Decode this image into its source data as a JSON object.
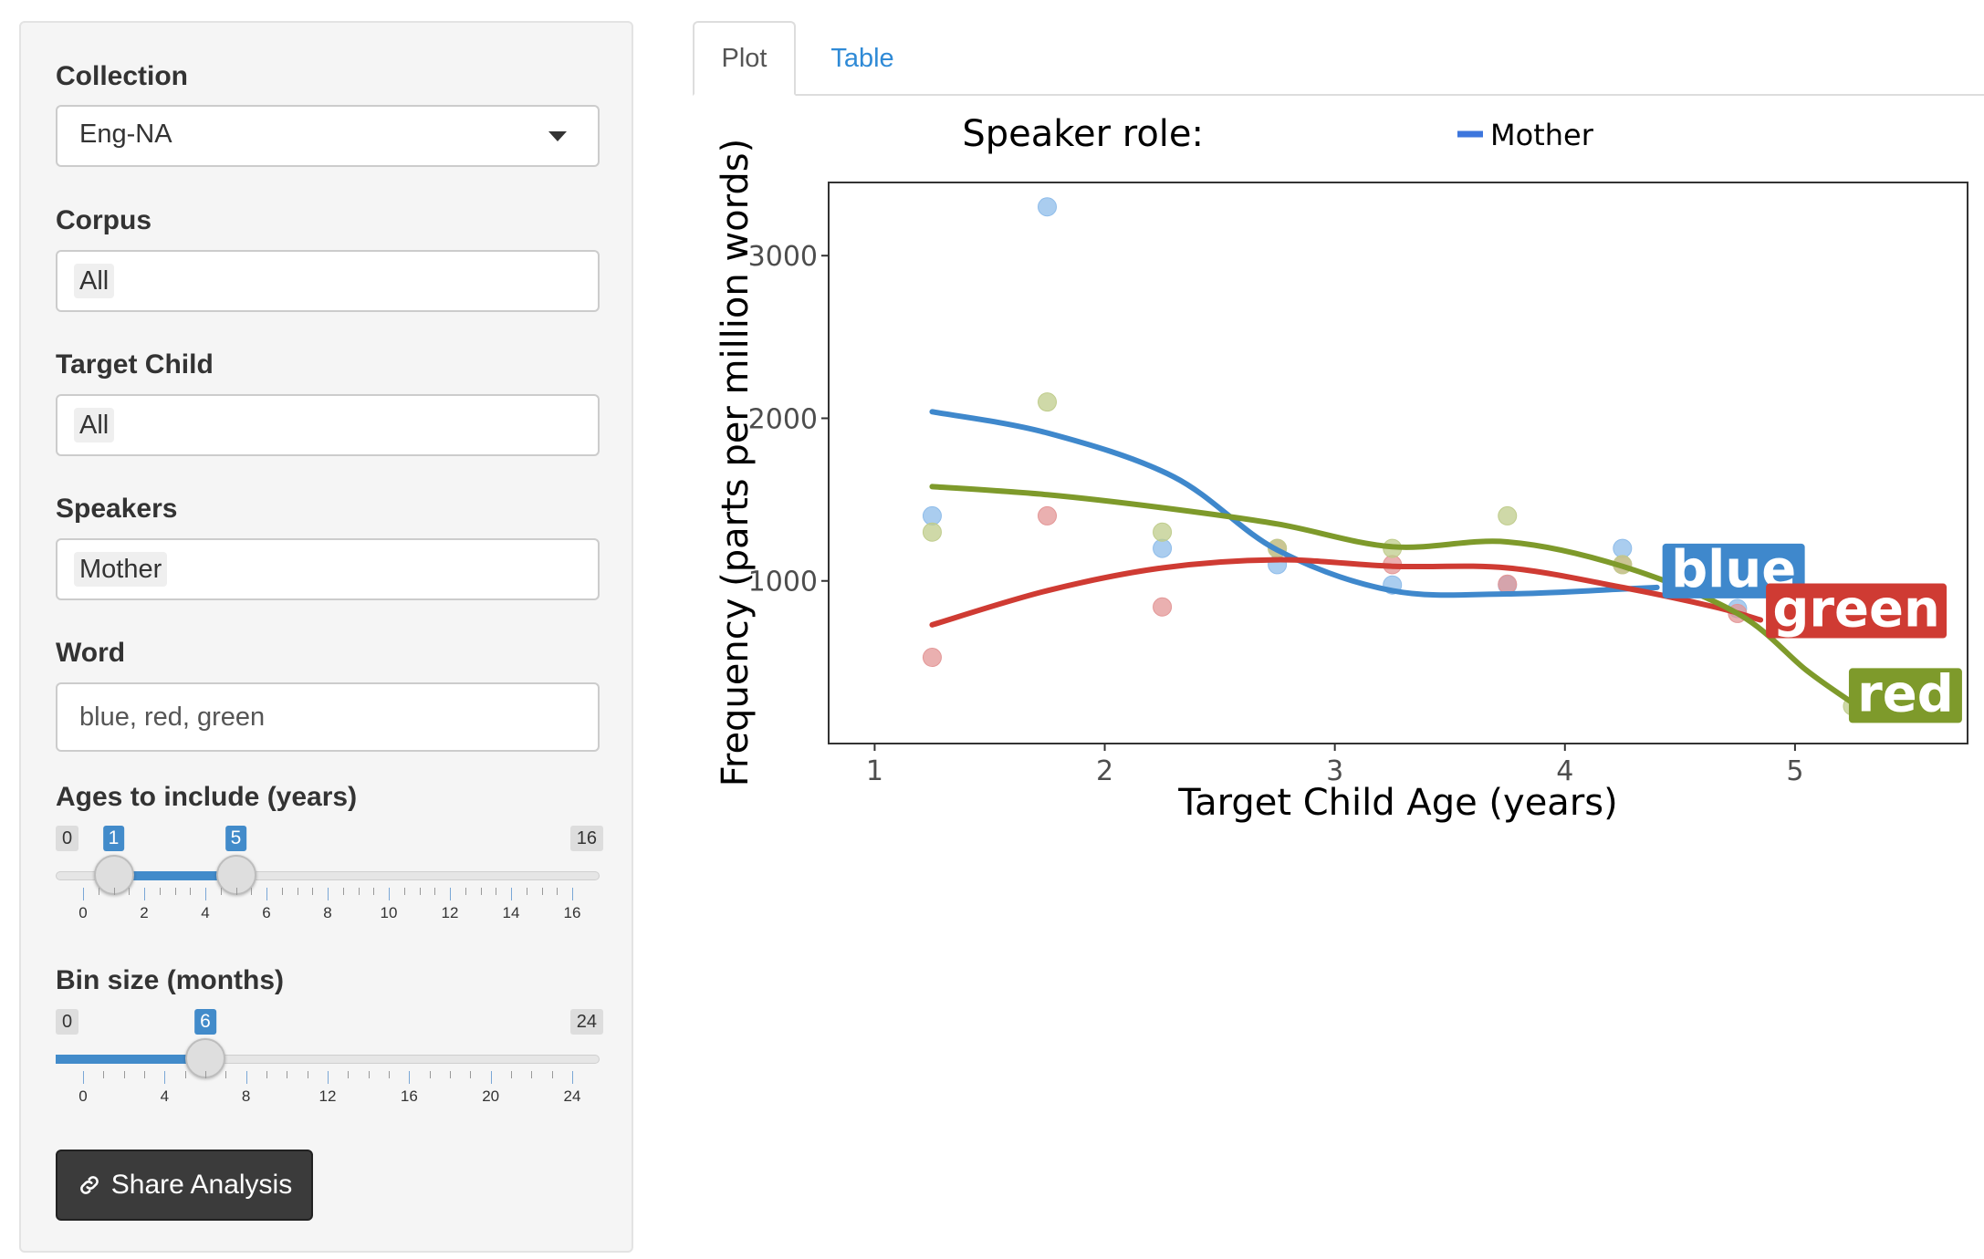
{
  "sidebar": {
    "collection": {
      "label": "Collection",
      "value": "Eng-NA"
    },
    "corpus": {
      "label": "Corpus",
      "value": "All"
    },
    "target_child": {
      "label": "Target Child",
      "value": "All"
    },
    "speakers": {
      "label": "Speakers",
      "value": "Mother"
    },
    "word": {
      "label": "Word",
      "value": "blue, red, green"
    },
    "ages": {
      "label": "Ages to include (years)",
      "min": "0",
      "max": "16",
      "from": 1,
      "to": 5,
      "tick_labels": [
        "0",
        "2",
        "4",
        "6",
        "8",
        "10",
        "12",
        "14",
        "16"
      ]
    },
    "bin": {
      "label": "Bin size (months)",
      "min": "0",
      "max": "24",
      "value": 6,
      "tick_labels": [
        "0",
        "4",
        "8",
        "12",
        "16",
        "20",
        "24"
      ]
    },
    "share_label": "Share Analysis"
  },
  "tabs": [
    {
      "label": "Plot",
      "active": true
    },
    {
      "label": "Table",
      "active": false
    }
  ],
  "chart_data": {
    "type": "scatter",
    "title": "Speaker role:",
    "legend": {
      "title": "Speaker role:",
      "entries": [
        "Mother"
      ],
      "color": "#3d76dd",
      "placement": "top"
    },
    "xlabel": "Target Child Age (years)",
    "ylabel": "Frequency (parts per million words)",
    "xlim": [
      0.8,
      5.75
    ],
    "ylim": [
      0,
      3450
    ],
    "x_ticks": [
      1,
      2,
      3,
      4,
      5
    ],
    "y_ticks": [
      1000,
      2000,
      3000
    ],
    "grid": false,
    "series": [
      {
        "name": "blue",
        "color": "#3f88cc",
        "point_color": "#8ebcea",
        "points": [
          [
            1.25,
            1400
          ],
          [
            1.75,
            3300
          ],
          [
            2.25,
            1200
          ],
          [
            2.75,
            1100
          ],
          [
            3.25,
            975
          ],
          [
            3.75,
            975
          ],
          [
            4.25,
            1200
          ],
          [
            4.75,
            830
          ]
        ],
        "trend": [
          [
            1.25,
            2040
          ],
          [
            1.75,
            1910
          ],
          [
            2.3,
            1640
          ],
          [
            2.75,
            1190
          ],
          [
            3.25,
            940
          ],
          [
            3.75,
            920
          ],
          [
            4.25,
            950
          ],
          [
            4.4,
            960
          ]
        ]
      },
      {
        "name": "green",
        "color": "#cf3b33",
        "point_color": "#e39696",
        "points": [
          [
            1.25,
            530
          ],
          [
            1.75,
            1400
          ],
          [
            2.25,
            840
          ],
          [
            2.75,
            1200
          ],
          [
            3.25,
            1100
          ],
          [
            3.75,
            980
          ],
          [
            4.25,
            1100
          ],
          [
            4.75,
            800
          ]
        ],
        "trend": [
          [
            1.25,
            730
          ],
          [
            1.75,
            940
          ],
          [
            2.25,
            1080
          ],
          [
            2.75,
            1130
          ],
          [
            3.25,
            1090
          ],
          [
            3.75,
            1080
          ],
          [
            4.25,
            960
          ],
          [
            4.65,
            840
          ],
          [
            4.85,
            760
          ]
        ]
      },
      {
        "name": "red",
        "color": "#7e9a2b",
        "point_color": "#bfcc8b",
        "points": [
          [
            1.25,
            1300
          ],
          [
            1.75,
            2100
          ],
          [
            2.25,
            1300
          ],
          [
            2.75,
            1200
          ],
          [
            3.25,
            1200
          ],
          [
            3.75,
            1400
          ],
          [
            4.25,
            1100
          ],
          [
            5.25,
            230
          ]
        ],
        "trend": [
          [
            1.25,
            1580
          ],
          [
            1.75,
            1530
          ],
          [
            2.25,
            1450
          ],
          [
            2.75,
            1350
          ],
          [
            3.25,
            1210
          ],
          [
            3.75,
            1240
          ],
          [
            4.25,
            1090
          ],
          [
            4.75,
            800
          ],
          [
            5.05,
            450
          ],
          [
            5.25,
            250
          ]
        ]
      }
    ]
  }
}
